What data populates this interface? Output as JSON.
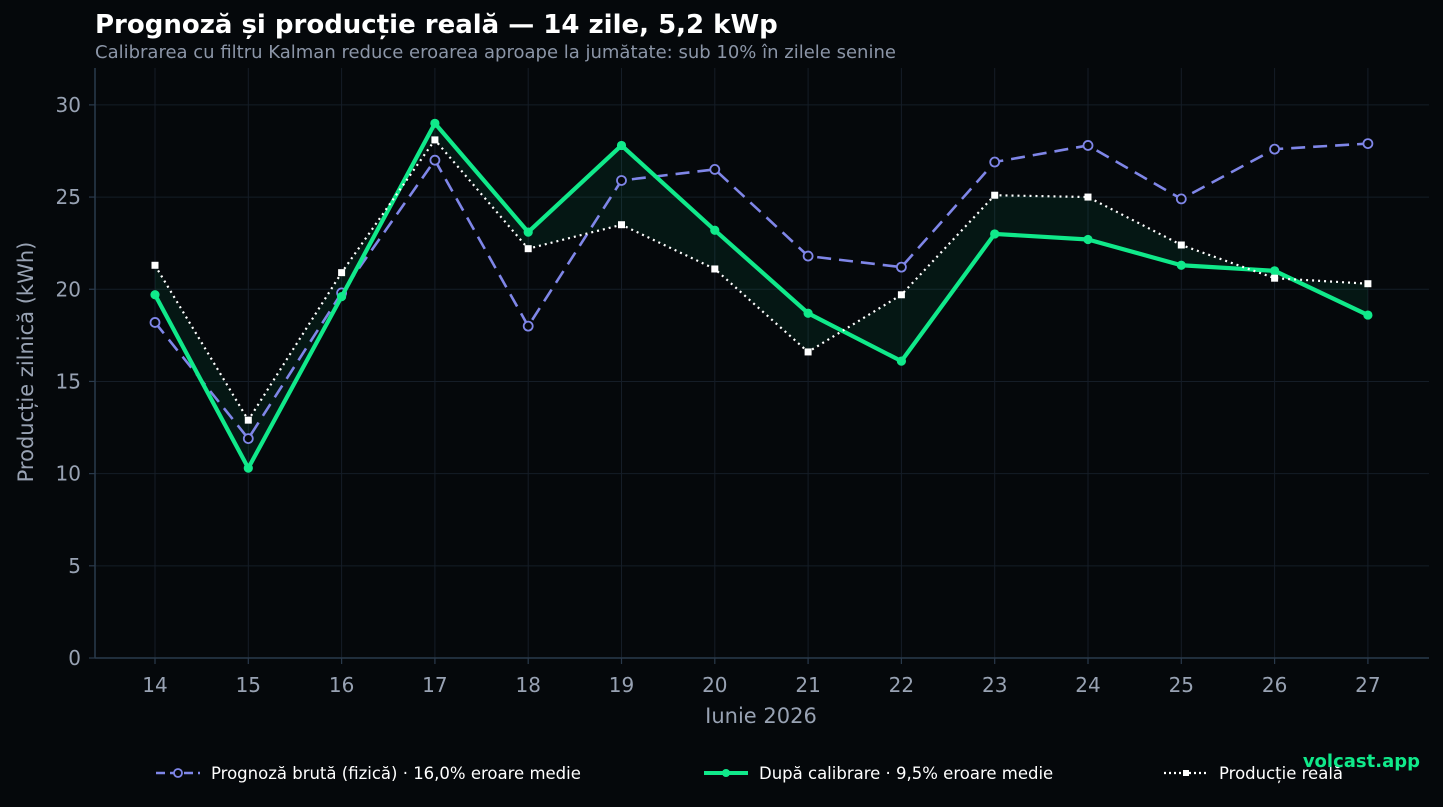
{
  "chart_data": {
    "type": "line",
    "title": "Prognoză și producție reală — 14 zile, 5,2 kWp",
    "subtitle": "Calibrarea cu filtru Kalman reduce eroarea aproape la jumătate: sub 10% în zilele senine",
    "xlabel": "Iunie 2026",
    "ylabel": "Producție zilnică (kWh)",
    "x": [
      14,
      15,
      16,
      17,
      18,
      19,
      20,
      21,
      22,
      23,
      24,
      25,
      26,
      27
    ],
    "ylim": [
      0,
      32
    ],
    "yticks": [
      0,
      5,
      10,
      15,
      20,
      25,
      30
    ],
    "grid": true,
    "legend_position": "bottom",
    "series": [
      {
        "name": "Prognoză brută (fizică)  ·  16,0% eroare medie",
        "color": "#7f86e8",
        "style": "dashed",
        "marker": "open-circle",
        "values": [
          18.2,
          11.9,
          19.8,
          27.0,
          18.0,
          25.9,
          26.5,
          21.8,
          21.2,
          26.9,
          27.8,
          24.9,
          27.6,
          27.9
        ]
      },
      {
        "name": "După calibrare  ·  9,5% eroare medie",
        "color": "#10e98a",
        "style": "solid",
        "marker": "circle",
        "values": [
          19.7,
          10.3,
          19.6,
          29.0,
          23.1,
          27.8,
          23.2,
          18.7,
          16.1,
          23.0,
          22.7,
          21.3,
          21.0,
          18.6
        ]
      },
      {
        "name": "Producție reală",
        "color": "#ffffff",
        "style": "dotted",
        "marker": "square",
        "values": [
          21.3,
          12.9,
          20.9,
          28.1,
          22.2,
          23.5,
          21.1,
          16.6,
          19.7,
          25.1,
          25.0,
          22.4,
          20.6,
          20.3
        ]
      }
    ],
    "fill_between": "După calibrare vs Producție reală"
  },
  "brand": "volcast.app",
  "colors": {
    "background": "#05080b",
    "grid": "#151d27",
    "axis": "#2a3a4c",
    "tick_text": "#98a2b3"
  }
}
